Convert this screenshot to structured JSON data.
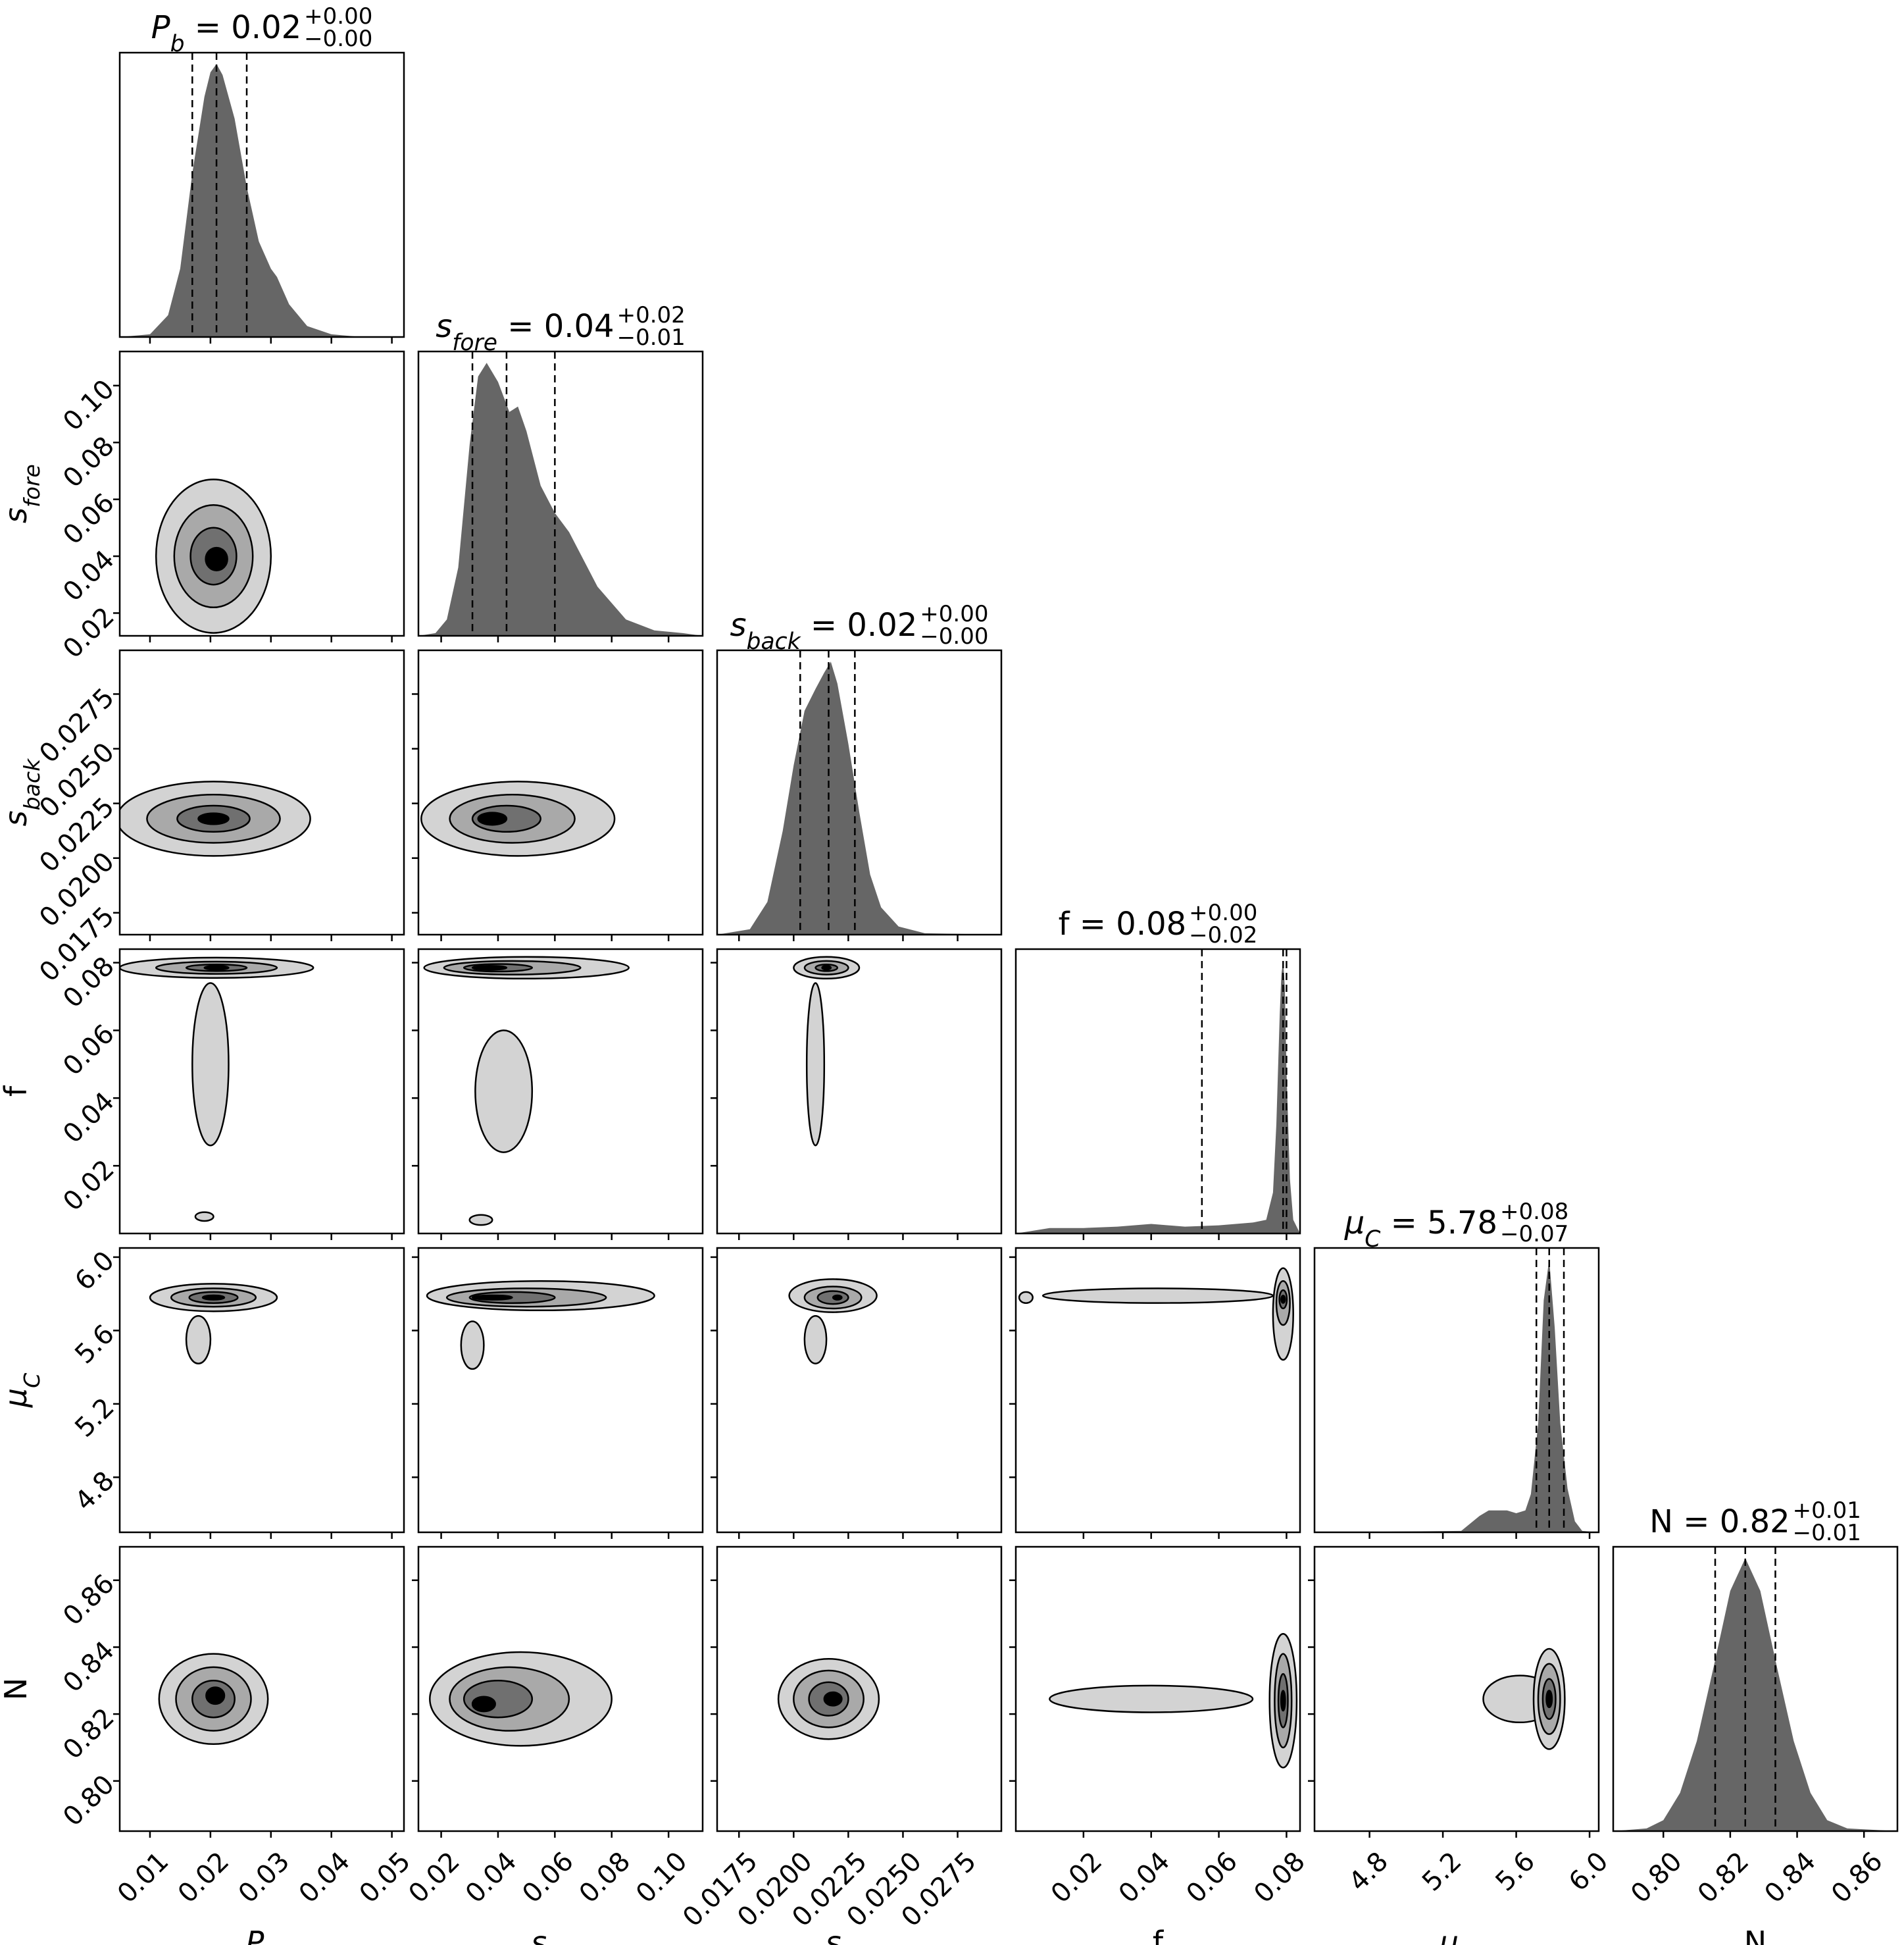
{
  "chart_data": {
    "type": "corner",
    "parameters": [
      {
        "id": "Pb",
        "label_base": "P",
        "label_sub": "b",
        "italic": true,
        "range": [
          0.005,
          0.052
        ],
        "ticks": [
          0.01,
          0.02,
          0.03,
          0.04,
          0.05
        ],
        "tick_labels": [
          "0.01",
          "0.02",
          "0.03",
          "0.04",
          "0.05"
        ],
        "median": 0.021,
        "q16": 0.017,
        "q84": 0.026,
        "title_value": "0.02",
        "title_plus": "+0.00",
        "title_minus": "−0.00",
        "hist_x": [
          0.005,
          0.01,
          0.013,
          0.015,
          0.017,
          0.019,
          0.02,
          0.021,
          0.022,
          0.024,
          0.026,
          0.028,
          0.03,
          0.031,
          0.033,
          0.036,
          0.04,
          0.045,
          0.052
        ],
        "hist_y": [
          0,
          0.01,
          0.08,
          0.25,
          0.6,
          0.88,
          0.97,
          1.0,
          0.96,
          0.8,
          0.55,
          0.35,
          0.25,
          0.22,
          0.12,
          0.04,
          0.01,
          0,
          0
        ]
      },
      {
        "id": "sfore",
        "label_base": "s",
        "label_sub": "fore",
        "italic": true,
        "range": [
          0.012,
          0.112
        ],
        "ticks": [
          0.02,
          0.04,
          0.06,
          0.08,
          0.1
        ],
        "tick_labels": [
          "0.02",
          "0.04",
          "0.06",
          "0.08",
          "0.10"
        ],
        "median": 0.043,
        "q16": 0.031,
        "q84": 0.06,
        "title_value": "0.04",
        "title_plus": "+0.02",
        "title_minus": "−0.01",
        "hist_x": [
          0.012,
          0.018,
          0.022,
          0.026,
          0.03,
          0.033,
          0.036,
          0.04,
          0.044,
          0.047,
          0.05,
          0.055,
          0.06,
          0.065,
          0.07,
          0.075,
          0.08,
          0.085,
          0.095,
          0.105,
          0.112
        ],
        "hist_y": [
          0,
          0.01,
          0.06,
          0.25,
          0.7,
          0.95,
          1.0,
          0.93,
          0.82,
          0.84,
          0.75,
          0.55,
          0.45,
          0.38,
          0.28,
          0.18,
          0.12,
          0.06,
          0.02,
          0.01,
          0
        ]
      },
      {
        "id": "sback",
        "label_base": "s",
        "label_sub": "back",
        "italic": true,
        "range": [
          0.0165,
          0.0295
        ],
        "ticks": [
          0.0175,
          0.02,
          0.0225,
          0.025,
          0.0275
        ],
        "tick_labels": [
          "0.0175",
          "0.0200",
          "0.0225",
          "0.0250",
          "0.0275"
        ],
        "median": 0.0216,
        "q16": 0.0203,
        "q84": 0.0228,
        "title_value": "0.02",
        "title_plus": "+0.00",
        "title_minus": "−0.00",
        "hist_x": [
          0.0165,
          0.018,
          0.0188,
          0.0195,
          0.02,
          0.0205,
          0.021,
          0.0214,
          0.0217,
          0.022,
          0.0225,
          0.023,
          0.0235,
          0.024,
          0.0248,
          0.026,
          0.0295
        ],
        "hist_y": [
          0,
          0.02,
          0.12,
          0.38,
          0.62,
          0.82,
          0.9,
          0.96,
          1.0,
          0.92,
          0.7,
          0.45,
          0.22,
          0.1,
          0.03,
          0.005,
          0
        ]
      },
      {
        "id": "f",
        "label_base": "f",
        "label_sub": "",
        "italic": false,
        "range": [
          0.0,
          0.084
        ],
        "ticks": [
          0.02,
          0.04,
          0.06,
          0.08
        ],
        "tick_labels": [
          "0.02",
          "0.04",
          "0.06",
          "0.08"
        ],
        "median": 0.079,
        "q16": 0.055,
        "q84": 0.08,
        "title_value": "0.08",
        "title_plus": "+0.00",
        "title_minus": "−0.02",
        "hist_x": [
          0.0,
          0.01,
          0.02,
          0.03,
          0.04,
          0.05,
          0.06,
          0.07,
          0.074,
          0.076,
          0.077,
          0.078,
          0.0785,
          0.079,
          0.0795,
          0.08,
          0.081,
          0.082,
          0.084
        ],
        "hist_y": [
          0,
          0.02,
          0.02,
          0.025,
          0.035,
          0.025,
          0.03,
          0.04,
          0.05,
          0.15,
          0.4,
          0.8,
          0.95,
          1.0,
          0.9,
          0.6,
          0.2,
          0.05,
          0
        ]
      },
      {
        "id": "muC",
        "label_base": "μ",
        "label_sub": "C",
        "italic": true,
        "range": [
          4.5,
          6.05
        ],
        "ticks": [
          4.8,
          5.2,
          5.6,
          6.0
        ],
        "tick_labels": [
          "4.8",
          "5.2",
          "5.6",
          "6.0"
        ],
        "median": 5.78,
        "q16": 5.71,
        "q84": 5.86,
        "title_value": "5.78",
        "title_plus": "+0.08",
        "title_minus": "−0.07",
        "hist_x": [
          4.5,
          5.3,
          5.4,
          5.45,
          5.5,
          5.55,
          5.6,
          5.65,
          5.68,
          5.72,
          5.75,
          5.78,
          5.81,
          5.84,
          5.88,
          5.92,
          5.96,
          6.05
        ],
        "hist_y": [
          0,
          0.005,
          0.06,
          0.08,
          0.08,
          0.08,
          0.07,
          0.08,
          0.14,
          0.4,
          0.85,
          1.0,
          0.75,
          0.4,
          0.16,
          0.04,
          0.005,
          0
        ]
      },
      {
        "id": "N",
        "label_base": "N",
        "label_sub": "",
        "italic": false,
        "range": [
          0.785,
          0.87
        ],
        "ticks": [
          0.8,
          0.82,
          0.84,
          0.86
        ],
        "tick_labels": [
          "0.80",
          "0.82",
          "0.84",
          "0.86"
        ],
        "median": 0.8245,
        "q16": 0.8155,
        "q84": 0.8335,
        "title_value": "0.82",
        "title_plus": "+0.01",
        "title_minus": "−0.01",
        "hist_x": [
          0.785,
          0.795,
          0.8,
          0.805,
          0.81,
          0.815,
          0.82,
          0.8245,
          0.829,
          0.834,
          0.839,
          0.844,
          0.849,
          0.855,
          0.87
        ],
        "hist_y": [
          0,
          0.01,
          0.04,
          0.14,
          0.33,
          0.6,
          0.88,
          1.0,
          0.88,
          0.6,
          0.33,
          0.14,
          0.04,
          0.01,
          0
        ]
      }
    ],
    "contours_2d": {
      "1,0": [
        {
          "cx": 0.0205,
          "cy": 0.04,
          "rx": 0.0095,
          "ry": 0.027,
          "shade": "#d3d3d3"
        },
        {
          "cx": 0.0205,
          "cy": 0.04,
          "rx": 0.0065,
          "ry": 0.018,
          "shade": "#a9a9a9"
        },
        {
          "cx": 0.0205,
          "cy": 0.04,
          "rx": 0.0038,
          "ry": 0.01,
          "shade": "#707070"
        },
        {
          "cx": 0.021,
          "cy": 0.039,
          "rx": 0.0018,
          "ry": 0.004,
          "shade": "#000000"
        }
      ],
      "2,0": [
        {
          "cx": 0.0205,
          "cy": 0.0218,
          "rx": 0.016,
          "ry": 0.0017,
          "shade": "#d3d3d3"
        },
        {
          "cx": 0.0205,
          "cy": 0.0218,
          "rx": 0.011,
          "ry": 0.0011,
          "shade": "#a9a9a9"
        },
        {
          "cx": 0.0205,
          "cy": 0.0218,
          "rx": 0.006,
          "ry": 0.0006,
          "shade": "#707070"
        },
        {
          "cx": 0.0205,
          "cy": 0.0218,
          "rx": 0.0025,
          "ry": 0.00025,
          "shade": "#000000"
        }
      ],
      "2,1": [
        {
          "cx": 0.047,
          "cy": 0.0218,
          "rx": 0.034,
          "ry": 0.0017,
          "shade": "#d3d3d3"
        },
        {
          "cx": 0.045,
          "cy": 0.0218,
          "rx": 0.022,
          "ry": 0.0011,
          "shade": "#a9a9a9"
        },
        {
          "cx": 0.043,
          "cy": 0.0218,
          "rx": 0.012,
          "ry": 0.0006,
          "shade": "#707070"
        },
        {
          "cx": 0.038,
          "cy": 0.0218,
          "rx": 0.005,
          "ry": 0.00028,
          "shade": "#000000"
        }
      ],
      "3,0": [
        {
          "cx": 0.021,
          "cy": 0.0785,
          "rx": 0.016,
          "ry": 0.003,
          "shade": "#d3d3d3"
        },
        {
          "cx": 0.021,
          "cy": 0.0785,
          "rx": 0.01,
          "ry": 0.0018,
          "shade": "#a9a9a9"
        },
        {
          "cx": 0.021,
          "cy": 0.0785,
          "rx": 0.005,
          "ry": 0.001,
          "shade": "#707070"
        },
        {
          "cx": 0.021,
          "cy": 0.0785,
          "rx": 0.002,
          "ry": 0.0004,
          "shade": "#000000"
        },
        {
          "cx": 0.02,
          "cy": 0.05,
          "rx": 0.003,
          "ry": 0.024,
          "shade": "#d3d3d3"
        },
        {
          "cx": 0.019,
          "cy": 0.005,
          "rx": 0.0015,
          "ry": 0.0013,
          "shade": "#d3d3d3"
        }
      ],
      "3,1": [
        {
          "cx": 0.05,
          "cy": 0.0785,
          "rx": 0.036,
          "ry": 0.0032,
          "shade": "#d3d3d3"
        },
        {
          "cx": 0.045,
          "cy": 0.0785,
          "rx": 0.024,
          "ry": 0.002,
          "shade": "#a9a9a9"
        },
        {
          "cx": 0.04,
          "cy": 0.0785,
          "rx": 0.012,
          "ry": 0.0011,
          "shade": "#707070"
        },
        {
          "cx": 0.037,
          "cy": 0.0785,
          "rx": 0.006,
          "ry": 0.0004,
          "shade": "#000000"
        },
        {
          "cx": 0.042,
          "cy": 0.042,
          "rx": 0.01,
          "ry": 0.018,
          "shade": "#d3d3d3"
        },
        {
          "cx": 0.034,
          "cy": 0.004,
          "rx": 0.004,
          "ry": 0.0015,
          "shade": "#d3d3d3"
        }
      ],
      "3,2": [
        {
          "cx": 0.0215,
          "cy": 0.0785,
          "rx": 0.0015,
          "ry": 0.0032,
          "shade": "#d3d3d3"
        },
        {
          "cx": 0.0215,
          "cy": 0.0785,
          "rx": 0.001,
          "ry": 0.002,
          "shade": "#a9a9a9"
        },
        {
          "cx": 0.0215,
          "cy": 0.0785,
          "rx": 0.0005,
          "ry": 0.001,
          "shade": "#707070"
        },
        {
          "cx": 0.0215,
          "cy": 0.0785,
          "rx": 0.0002,
          "ry": 0.0004,
          "shade": "#000000"
        },
        {
          "cx": 0.021,
          "cy": 0.05,
          "rx": 0.0004,
          "ry": 0.024,
          "shade": "#d3d3d3"
        }
      ],
      "4,0": [
        {
          "cx": 0.0205,
          "cy": 5.78,
          "rx": 0.0105,
          "ry": 0.075,
          "shade": "#d3d3d3"
        },
        {
          "cx": 0.0205,
          "cy": 5.78,
          "rx": 0.007,
          "ry": 0.05,
          "shade": "#a9a9a9"
        },
        {
          "cx": 0.0205,
          "cy": 5.78,
          "rx": 0.004,
          "ry": 0.03,
          "shade": "#707070"
        },
        {
          "cx": 0.0205,
          "cy": 5.78,
          "rx": 0.0018,
          "ry": 0.012,
          "shade": "#000000"
        },
        {
          "cx": 0.018,
          "cy": 5.55,
          "rx": 0.002,
          "ry": 0.13,
          "shade": "#d3d3d3"
        }
      ],
      "4,1": [
        {
          "cx": 0.055,
          "cy": 5.79,
          "rx": 0.04,
          "ry": 0.08,
          "shade": "#d3d3d3"
        },
        {
          "cx": 0.05,
          "cy": 5.78,
          "rx": 0.028,
          "ry": 0.05,
          "shade": "#a9a9a9"
        },
        {
          "cx": 0.045,
          "cy": 5.78,
          "rx": 0.015,
          "ry": 0.03,
          "shade": "#707070"
        },
        {
          "cx": 0.038,
          "cy": 5.78,
          "rx": 0.007,
          "ry": 0.012,
          "shade": "#000000"
        },
        {
          "cx": 0.031,
          "cy": 5.52,
          "rx": 0.004,
          "ry": 0.13,
          "shade": "#d3d3d3"
        }
      ],
      "4,2": [
        {
          "cx": 0.0218,
          "cy": 5.79,
          "rx": 0.002,
          "ry": 0.09,
          "shade": "#d3d3d3"
        },
        {
          "cx": 0.0218,
          "cy": 5.78,
          "rx": 0.0013,
          "ry": 0.06,
          "shade": "#a9a9a9"
        },
        {
          "cx": 0.0218,
          "cy": 5.78,
          "rx": 0.0007,
          "ry": 0.035,
          "shade": "#707070"
        },
        {
          "cx": 0.022,
          "cy": 5.78,
          "rx": 0.0002,
          "ry": 0.012,
          "shade": "#000000"
        },
        {
          "cx": 0.021,
          "cy": 5.55,
          "rx": 0.0005,
          "ry": 0.13,
          "shade": "#d3d3d3"
        }
      ],
      "4,3": [
        {
          "cx": 0.042,
          "cy": 5.79,
          "rx": 0.034,
          "ry": 0.04,
          "shade": "#d3d3d3"
        },
        {
          "cx": 0.079,
          "cy": 5.69,
          "rx": 0.003,
          "ry": 0.25,
          "shade": "#d3d3d3"
        },
        {
          "cx": 0.079,
          "cy": 5.75,
          "rx": 0.002,
          "ry": 0.12,
          "shade": "#a9a9a9"
        },
        {
          "cx": 0.079,
          "cy": 5.77,
          "rx": 0.0011,
          "ry": 0.05,
          "shade": "#707070"
        },
        {
          "cx": 0.079,
          "cy": 5.77,
          "rx": 0.0005,
          "ry": 0.02,
          "shade": "#000000"
        },
        {
          "cx": 0.003,
          "cy": 5.78,
          "rx": 0.002,
          "ry": 0.03,
          "shade": "#d3d3d3"
        }
      ],
      "5,0": [
        {
          "cx": 0.0205,
          "cy": 0.8245,
          "rx": 0.009,
          "ry": 0.0135,
          "shade": "#d3d3d3"
        },
        {
          "cx": 0.0205,
          "cy": 0.8245,
          "rx": 0.0062,
          "ry": 0.0095,
          "shade": "#a9a9a9"
        },
        {
          "cx": 0.0205,
          "cy": 0.8245,
          "rx": 0.0035,
          "ry": 0.0055,
          "shade": "#707070"
        },
        {
          "cx": 0.0208,
          "cy": 0.8255,
          "rx": 0.0015,
          "ry": 0.0025,
          "shade": "#000000"
        }
      ],
      "5,1": [
        {
          "cx": 0.048,
          "cy": 0.8245,
          "rx": 0.032,
          "ry": 0.014,
          "shade": "#d3d3d3"
        },
        {
          "cx": 0.044,
          "cy": 0.8245,
          "rx": 0.021,
          "ry": 0.0095,
          "shade": "#a9a9a9"
        },
        {
          "cx": 0.04,
          "cy": 0.8245,
          "rx": 0.012,
          "ry": 0.0055,
          "shade": "#707070"
        },
        {
          "cx": 0.035,
          "cy": 0.823,
          "rx": 0.004,
          "ry": 0.0022,
          "shade": "#000000"
        }
      ],
      "5,2": [
        {
          "cx": 0.0216,
          "cy": 0.8245,
          "rx": 0.0023,
          "ry": 0.012,
          "shade": "#d3d3d3"
        },
        {
          "cx": 0.0216,
          "cy": 0.8245,
          "rx": 0.0016,
          "ry": 0.0085,
          "shade": "#a9a9a9"
        },
        {
          "cx": 0.0216,
          "cy": 0.8245,
          "rx": 0.0009,
          "ry": 0.005,
          "shade": "#707070"
        },
        {
          "cx": 0.0218,
          "cy": 0.8245,
          "rx": 0.0004,
          "ry": 0.002,
          "shade": "#000000"
        }
      ],
      "5,3": [
        {
          "cx": 0.04,
          "cy": 0.8245,
          "rx": 0.03,
          "ry": 0.004,
          "shade": "#d3d3d3"
        },
        {
          "cx": 0.079,
          "cy": 0.824,
          "rx": 0.004,
          "ry": 0.02,
          "shade": "#d3d3d3"
        },
        {
          "cx": 0.079,
          "cy": 0.824,
          "rx": 0.0025,
          "ry": 0.014,
          "shade": "#a9a9a9"
        },
        {
          "cx": 0.079,
          "cy": 0.824,
          "rx": 0.0014,
          "ry": 0.008,
          "shade": "#707070"
        },
        {
          "cx": 0.079,
          "cy": 0.824,
          "rx": 0.0006,
          "ry": 0.003,
          "shade": "#000000"
        }
      ],
      "5,4": [
        {
          "cx": 5.62,
          "cy": 0.8245,
          "rx": 0.2,
          "ry": 0.007,
          "shade": "#d3d3d3"
        },
        {
          "cx": 5.78,
          "cy": 0.8245,
          "rx": 0.085,
          "ry": 0.015,
          "shade": "#d3d3d3"
        },
        {
          "cx": 5.78,
          "cy": 0.8245,
          "rx": 0.06,
          "ry": 0.0105,
          "shade": "#a9a9a9"
        },
        {
          "cx": 5.78,
          "cy": 0.8245,
          "rx": 0.035,
          "ry": 0.006,
          "shade": "#707070"
        },
        {
          "cx": 5.78,
          "cy": 0.8245,
          "rx": 0.015,
          "ry": 0.0025,
          "shade": "#000000"
        }
      ]
    }
  }
}
